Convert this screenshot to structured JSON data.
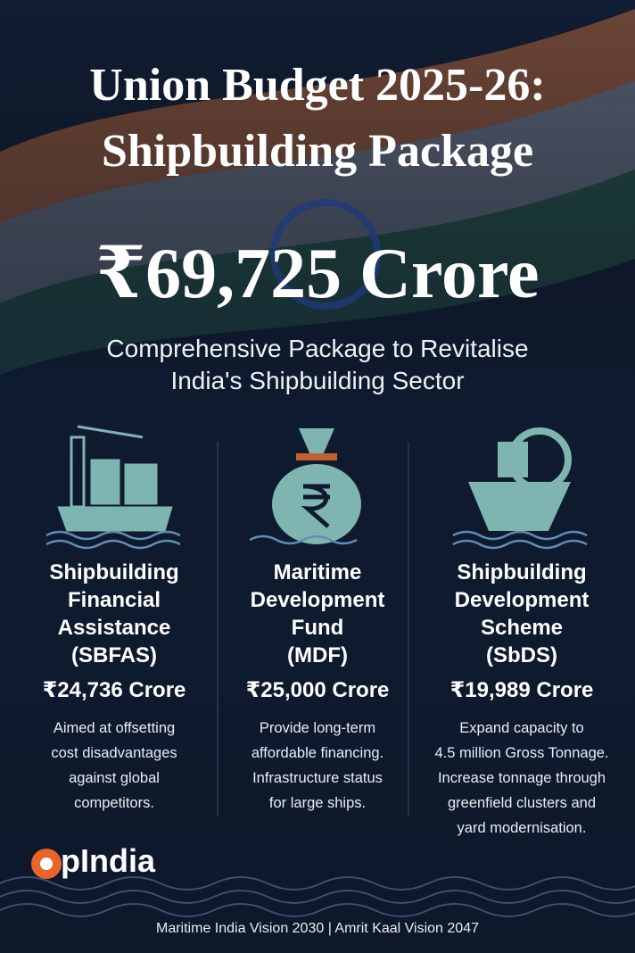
{
  "header": {
    "title_lines": [
      "Union Budget 2025-26:",
      "Shipbuilding Package"
    ],
    "amount": "₹69,725 Crore",
    "subtitle_lines": [
      "Comprehensive Package to Revitalise",
      "India's Shipbuilding Sector"
    ]
  },
  "columns": [
    {
      "name_lines": [
        "Shipbuilding",
        "Financial",
        "Assistance",
        "(SBFAS)"
      ],
      "amount": "₹24,736 Crore",
      "description_lines": [
        "Aimed at offsetting",
        "cost disadvantages",
        "against global",
        "competitors."
      ]
    },
    {
      "name_lines": [
        "Maritime",
        "Development",
        "Fund",
        "(MDF)"
      ],
      "amount": "₹25,000 Crore",
      "description_lines": [
        "Provide long-term",
        "affordable financing.",
        "Infrastructure status",
        "for large ships."
      ]
    },
    {
      "name_lines": [
        "Shipbuilding",
        "Development",
        "Scheme",
        "(SbDS)"
      ],
      "amount": "₹19,989 Crore",
      "description_lines": [
        "Expand capacity to",
        "4.5 million Gross Tonnage.",
        "Increase tonnage through",
        "greenfield clusters and",
        "yard modernisation."
      ]
    }
  ],
  "logo": "pIndia",
  "footer": "Maritime India Vision 2030 | Amrit Kaal Vision 2047"
}
